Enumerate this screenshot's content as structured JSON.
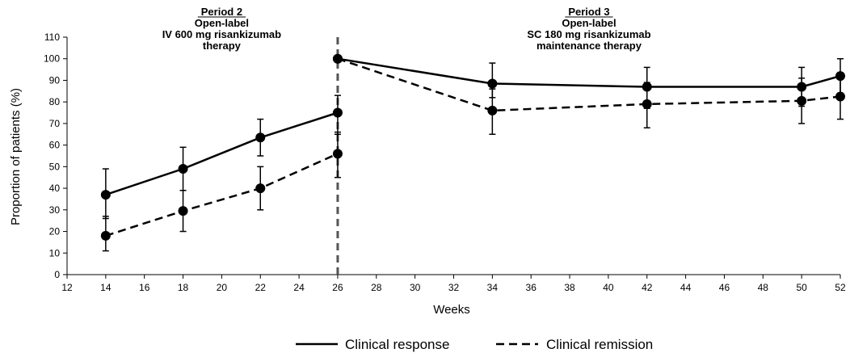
{
  "chart_data": {
    "type": "line",
    "xlabel": "Weeks",
    "ylabel": "Proportion of patients (%)",
    "xlim": [
      12,
      52
    ],
    "ylim": [
      0,
      110
    ],
    "x_ticks": [
      "12",
      "14",
      "16",
      "18",
      "20",
      "22",
      "24",
      "26",
      "28",
      "30",
      "32",
      "34",
      "36",
      "38",
      "40",
      "42",
      "44",
      "46",
      "48",
      "50",
      "52"
    ],
    "y_ticks": [
      "0",
      "10",
      "20",
      "30",
      "40",
      "50",
      "60",
      "70",
      "80",
      "90",
      "100",
      "110"
    ],
    "grid": false,
    "vertical_reference_line_x": 26,
    "annotations": [
      {
        "lines": [
          "Period 2",
          "Open-label",
          "IV 600 mg risankizumab",
          "therapy"
        ],
        "x_center": 20
      },
      {
        "lines": [
          "Period 3",
          "Open-label",
          "SC 180 mg risankizumab",
          "maintenance therapy"
        ],
        "x_center": 39
      }
    ],
    "series": [
      {
        "name": "Clinical response",
        "line_style": "solid",
        "color": "#000000",
        "segments": [
          [
            {
              "x": 14,
              "y": 37,
              "lo": 26,
              "hi": 49
            },
            {
              "x": 18,
              "y": 49,
              "lo": 39,
              "hi": 59
            },
            {
              "x": 22,
              "y": 63.5,
              "lo": 55,
              "hi": 72
            },
            {
              "x": 26,
              "y": 75,
              "lo": 65,
              "hi": 83
            }
          ],
          [
            {
              "x": 26,
              "y": 100,
              "lo": 100,
              "hi": 100
            },
            {
              "x": 34,
              "y": 88.5,
              "lo": 82,
              "hi": 98
            },
            {
              "x": 42,
              "y": 87,
              "lo": 77,
              "hi": 96
            },
            {
              "x": 50,
              "y": 87,
              "lo": 78,
              "hi": 96
            },
            {
              "x": 52,
              "y": 92,
              "lo": 84,
              "hi": 100
            }
          ]
        ]
      },
      {
        "name": "Clinical remission",
        "line_style": "dashed",
        "color": "#000000",
        "segments": [
          [
            {
              "x": 14,
              "y": 18,
              "lo": 11,
              "hi": 27
            },
            {
              "x": 18,
              "y": 29.5,
              "lo": 20,
              "hi": 39
            },
            {
              "x": 22,
              "y": 40,
              "lo": 30,
              "hi": 50
            },
            {
              "x": 26,
              "y": 56,
              "lo": 45,
              "hi": 66
            }
          ],
          [
            {
              "x": 26,
              "y": 100,
              "lo": 100,
              "hi": 100
            },
            {
              "x": 34,
              "y": 76,
              "lo": 65,
              "hi": 86
            },
            {
              "x": 42,
              "y": 79,
              "lo": 68,
              "hi": 89
            },
            {
              "x": 50,
              "y": 80.5,
              "lo": 70,
              "hi": 91
            },
            {
              "x": 52,
              "y": 82.5,
              "lo": 72,
              "hi": 92
            }
          ]
        ]
      }
    ],
    "legend": {
      "position": "bottom-center",
      "entries": [
        "Clinical response",
        "Clinical remission"
      ]
    }
  }
}
